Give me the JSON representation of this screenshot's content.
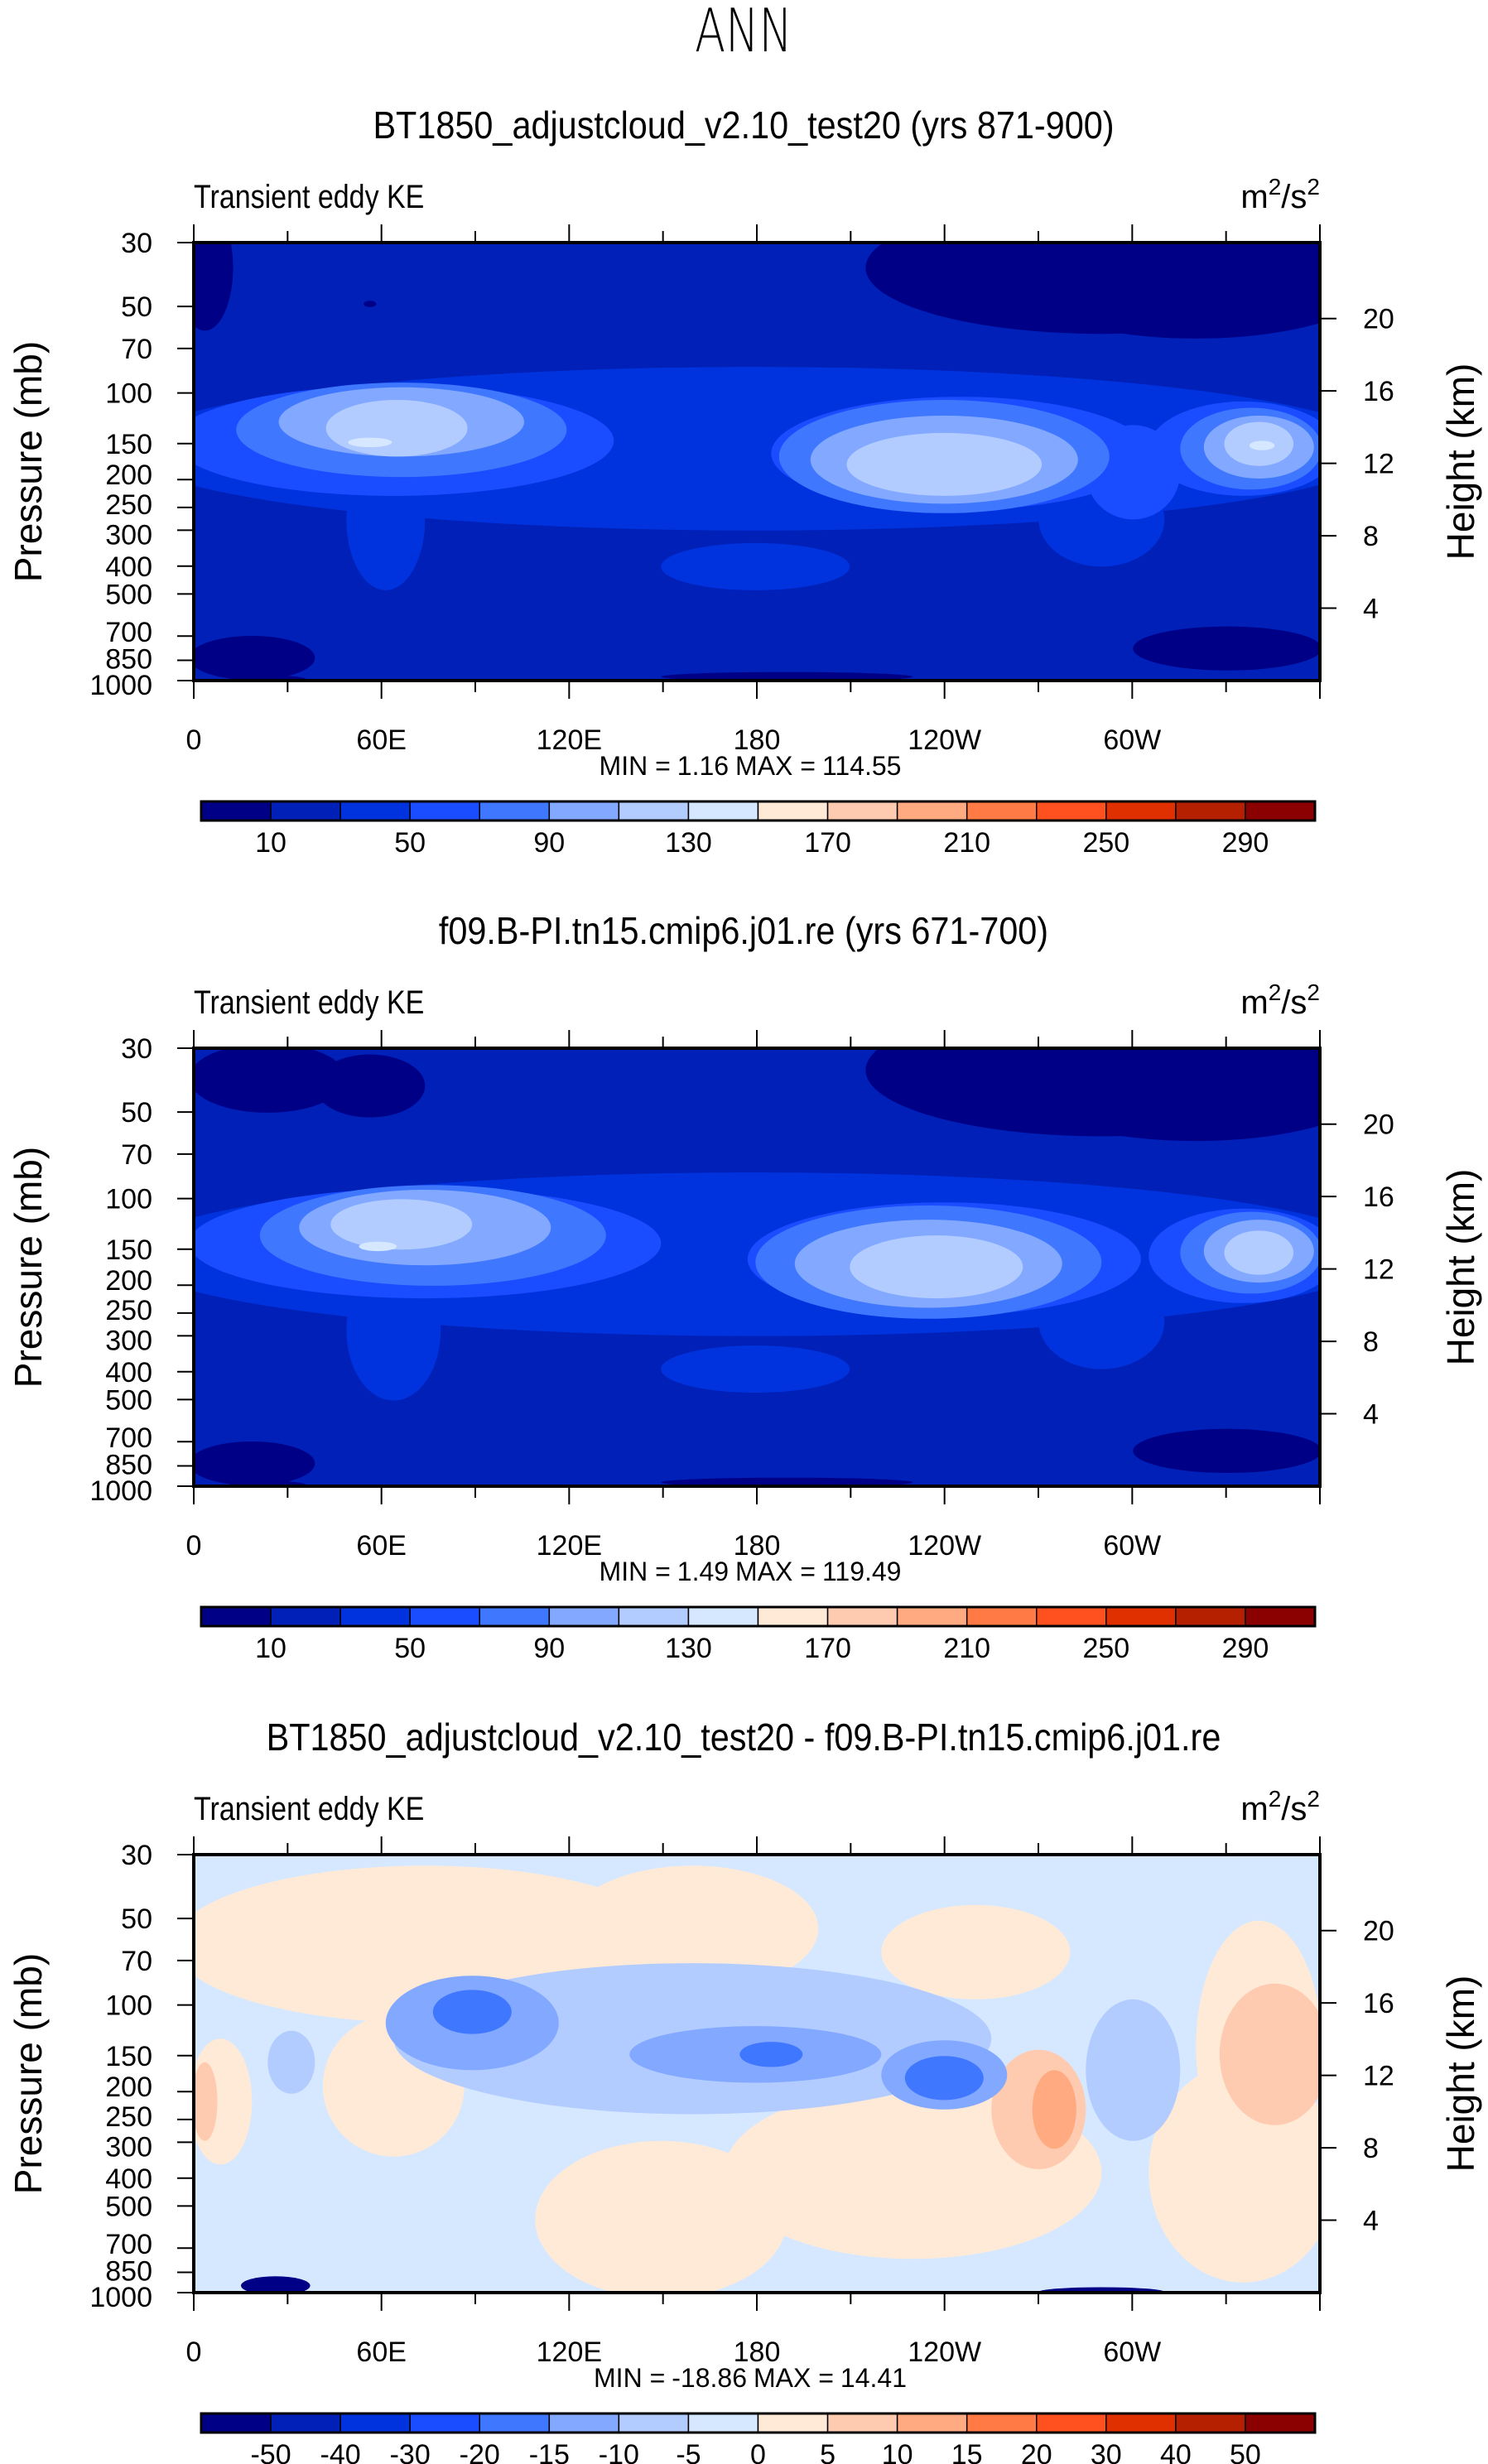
{
  "main_title": "ANN",
  "colors": [
    "#000087",
    "#0020B8",
    "#0033DD",
    "#1A4DFF",
    "#4077FF",
    "#82A8FF",
    "#B3CCFF",
    "#D5E8FF",
    "#FFEAD8",
    "#FFCBB0",
    "#FFAA80",
    "#FF7A45",
    "#FF5020",
    "#E03000",
    "#B52000",
    "#8B0000"
  ],
  "chart_data": [
    {
      "type": "heatmap",
      "title": "BT1850_adjustcloud_v2.10_test20 (yrs 871-900)",
      "left_string": "Transient eddy KE",
      "units_base": "m",
      "units_exp1": "2",
      "units_sep": "/s",
      "units_exp2": "2",
      "ylabel": "Pressure (mb)",
      "ylabel_right": "Height (km)",
      "x_ticks": [
        "0",
        "60E",
        "120E",
        "180",
        "120W",
        "60W"
      ],
      "y_ticks": [
        "30",
        "50",
        "70",
        "100",
        "150",
        "200",
        "250",
        "300",
        "400",
        "500",
        "700",
        "850",
        "1000"
      ],
      "y_right_ticks": [
        "4",
        "8",
        "12",
        "16",
        "20"
      ],
      "xlim": [
        0,
        360
      ],
      "ylim_mb": [
        1000,
        30
      ],
      "min_label": "MIN =",
      "min_value": "1.16",
      "max_label": "MAX =",
      "max_value": "114.55",
      "levels": [
        "10",
        "30",
        "50",
        "70",
        "90",
        "110",
        "130",
        "150",
        "170",
        "190",
        "210",
        "230",
        "250",
        "270",
        "290"
      ],
      "label_stride": 2
    },
    {
      "type": "heatmap",
      "title": "f09.B-PI.tn15.cmip6.j01.re (yrs 671-700)",
      "left_string": "Transient eddy KE",
      "units_base": "m",
      "units_exp1": "2",
      "units_sep": "/s",
      "units_exp2": "2",
      "ylabel": "Pressure (mb)",
      "ylabel_right": "Height (km)",
      "x_ticks": [
        "0",
        "60E",
        "120E",
        "180",
        "120W",
        "60W"
      ],
      "y_ticks": [
        "30",
        "50",
        "70",
        "100",
        "150",
        "200",
        "250",
        "300",
        "400",
        "500",
        "700",
        "850",
        "1000"
      ],
      "y_right_ticks": [
        "4",
        "8",
        "12",
        "16",
        "20"
      ],
      "xlim": [
        0,
        360
      ],
      "ylim_mb": [
        1000,
        30
      ],
      "min_label": "MIN =",
      "min_value": "1.49",
      "max_label": "MAX =",
      "max_value": "119.49",
      "levels": [
        "10",
        "30",
        "50",
        "70",
        "90",
        "110",
        "130",
        "150",
        "170",
        "190",
        "210",
        "230",
        "250",
        "270",
        "290"
      ],
      "label_stride": 2
    },
    {
      "type": "heatmap",
      "title": "BT1850_adjustcloud_v2.10_test20 - f09.B-PI.tn15.cmip6.j01.re",
      "left_string": "Transient eddy KE",
      "units_base": "m",
      "units_exp1": "2",
      "units_sep": "/s",
      "units_exp2": "2",
      "ylabel": "Pressure (mb)",
      "ylabel_right": "Height (km)",
      "x_ticks": [
        "0",
        "60E",
        "120E",
        "180",
        "120W",
        "60W"
      ],
      "y_ticks": [
        "30",
        "50",
        "70",
        "100",
        "150",
        "200",
        "250",
        "300",
        "400",
        "500",
        "700",
        "850",
        "1000"
      ],
      "y_right_ticks": [
        "4",
        "8",
        "12",
        "16",
        "20"
      ],
      "xlim": [
        0,
        360
      ],
      "ylim_mb": [
        1000,
        30
      ],
      "min_label": "MIN =",
      "min_value": "-18.86",
      "max_label": "MAX =",
      "max_value": "14.41",
      "levels": [
        "-50",
        "-40",
        "-30",
        "-20",
        "-15",
        "-10",
        "-5",
        "0",
        "5",
        "10",
        "15",
        "20",
        "30",
        "40",
        "50"
      ],
      "label_stride": 1
    }
  ]
}
